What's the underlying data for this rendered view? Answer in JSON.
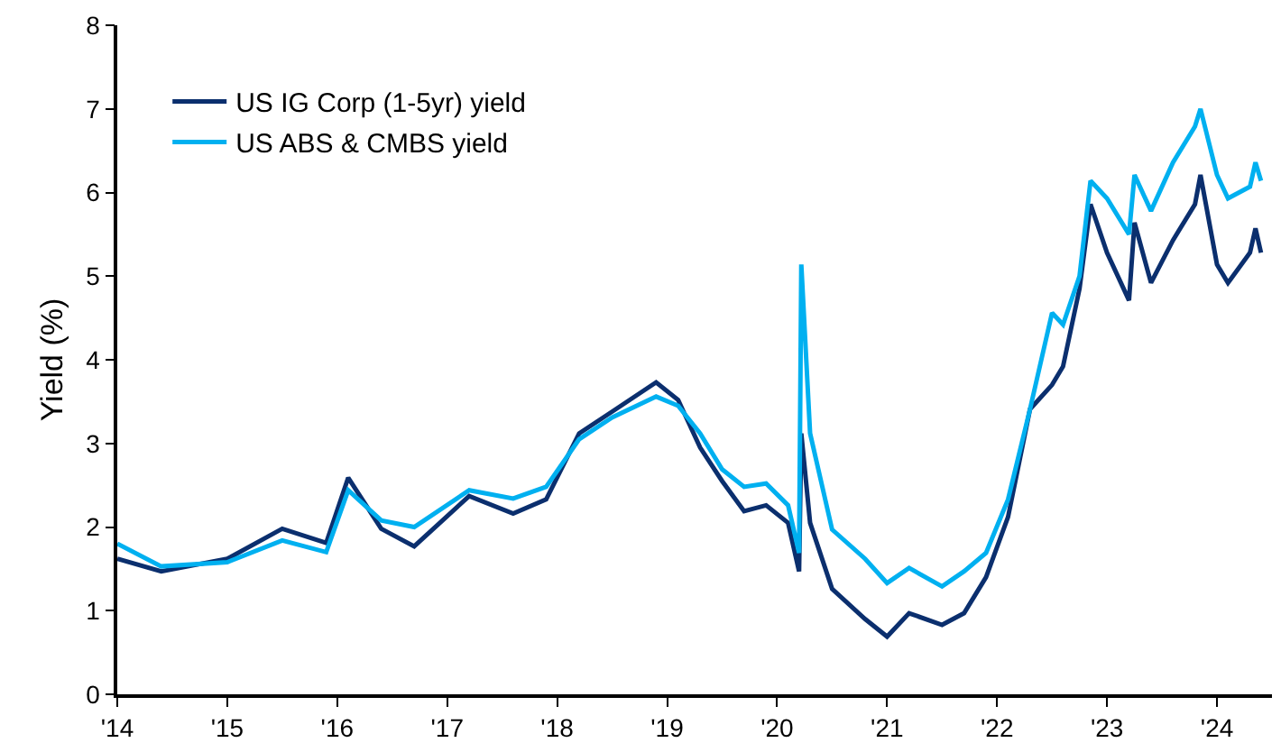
{
  "chart_data": {
    "type": "line",
    "ylabel": "Yield (%)",
    "x": [
      2014,
      2014.4,
      2015,
      2015.5,
      2015.9,
      2016.1,
      2016.4,
      2016.7,
      2017.2,
      2017.6,
      2017.9,
      2018.2,
      2018.5,
      2018.9,
      2019.1,
      2019.3,
      2019.5,
      2019.7,
      2019.9,
      2020.1,
      2020.2,
      2020.22,
      2020.3,
      2020.5,
      2020.8,
      2021,
      2021.2,
      2021.5,
      2021.7,
      2021.9,
      2022.1,
      2022.3,
      2022.5,
      2022.6,
      2022.75,
      2022.85,
      2023,
      2023.2,
      2023.25,
      2023.4,
      2023.6,
      2023.8,
      2023.85,
      2024,
      2024.1,
      2024.3,
      2024.35,
      2024.4
    ],
    "series": [
      {
        "name": "US IG Corp (1-5yr) yield",
        "color": "#0b2f6e",
        "values": [
          1.62,
          1.47,
          1.62,
          1.98,
          1.81,
          2.59,
          1.98,
          1.77,
          2.37,
          2.16,
          2.33,
          3.12,
          3.38,
          3.73,
          3.52,
          2.95,
          2.55,
          2.19,
          2.26,
          2.05,
          1.47,
          3.12,
          2.05,
          1.26,
          0.9,
          0.69,
          0.97,
          0.83,
          0.97,
          1.4,
          2.12,
          3.41,
          3.7,
          3.92,
          4.85,
          5.86,
          5.28,
          4.71,
          5.64,
          4.92,
          5.43,
          5.86,
          6.21,
          5.14,
          4.92,
          5.28,
          5.57,
          5.28
        ]
      },
      {
        "name": "US ABS & CMBS yield",
        "color": "#00b0f0",
        "values": [
          1.8,
          1.53,
          1.58,
          1.84,
          1.7,
          2.44,
          2.08,
          2.0,
          2.44,
          2.34,
          2.48,
          3.05,
          3.31,
          3.56,
          3.45,
          3.12,
          2.69,
          2.48,
          2.52,
          2.26,
          1.69,
          5.14,
          3.12,
          1.97,
          1.62,
          1.33,
          1.51,
          1.29,
          1.47,
          1.69,
          2.33,
          3.41,
          4.56,
          4.42,
          5.0,
          6.14,
          5.93,
          5.5,
          6.21,
          5.78,
          6.36,
          6.79,
          7.0,
          6.21,
          5.93,
          6.07,
          6.36,
          6.14
        ]
      }
    ],
    "xlim": [
      2014,
      2024.5
    ],
    "xticks": [
      {
        "value": 2014,
        "label": "'14"
      },
      {
        "value": 2015,
        "label": "'15"
      },
      {
        "value": 2016,
        "label": "'16"
      },
      {
        "value": 2017,
        "label": "'17"
      },
      {
        "value": 2018,
        "label": "'18"
      },
      {
        "value": 2019,
        "label": "'19"
      },
      {
        "value": 2020,
        "label": "'20"
      },
      {
        "value": 2021,
        "label": "'21"
      },
      {
        "value": 2022,
        "label": "'22"
      },
      {
        "value": 2023,
        "label": "'23"
      },
      {
        "value": 2024,
        "label": "'24"
      }
    ],
    "ylim": [
      0,
      8
    ],
    "yticks": [
      0,
      1,
      2,
      3,
      4,
      5,
      6,
      7,
      8
    ],
    "grid": false,
    "legend": "top left",
    "marker": "none",
    "line_style": "solid"
  }
}
